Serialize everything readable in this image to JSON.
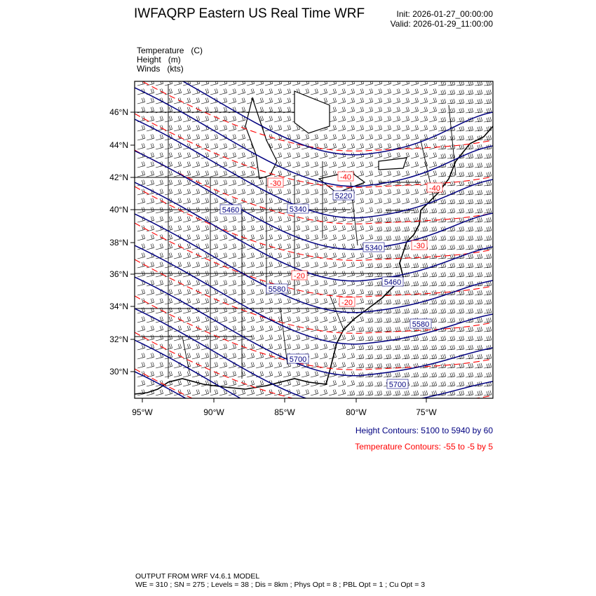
{
  "header": {
    "title": "IWFAQRP Eastern US Real Time WRF",
    "init": "Init: 2026-01-27_00:00:00",
    "valid": "Valid: 2026-01-29_11:00:00"
  },
  "fields": [
    {
      "name": "Temperature",
      "unit": "(C)"
    },
    {
      "name": "Height",
      "unit": "(m)"
    },
    {
      "name": "Winds",
      "unit": "(kts)"
    }
  ],
  "map": {
    "lat_ticks": [
      "46°N",
      "44°N",
      "42°N",
      "40°N",
      "38°N",
      "36°N",
      "34°N",
      "32°N",
      "30°N"
    ],
    "lon_ticks": [
      "95°W",
      "90°W",
      "85°W",
      "80°W",
      "75°W"
    ],
    "height_labels": [
      "5460",
      "5340",
      "5220",
      "5340",
      "5460",
      "5580",
      "5580",
      "5700",
      "5700"
    ],
    "temp_labels": [
      "-30",
      "-40",
      "-20",
      "-20",
      "-30",
      "-40"
    ],
    "colors": {
      "height": "#000080",
      "temperature": "#ff0000",
      "barbs": "#000000",
      "boundaries": "#000000"
    }
  },
  "legend": {
    "height": "Height Contours: 5100 to 5940 by 60",
    "temperature": "Temperature Contours: -55 to -5 by 5"
  },
  "footer": {
    "line1": "OUTPUT FROM WRF V4.6.1 MODEL",
    "line2": "WE = 310 ; SN = 275 ; Levels = 38 ; Dis = 8km ; Phys Opt = 8 ; PBL Opt = 1 ; Cu Opt = 3"
  }
}
